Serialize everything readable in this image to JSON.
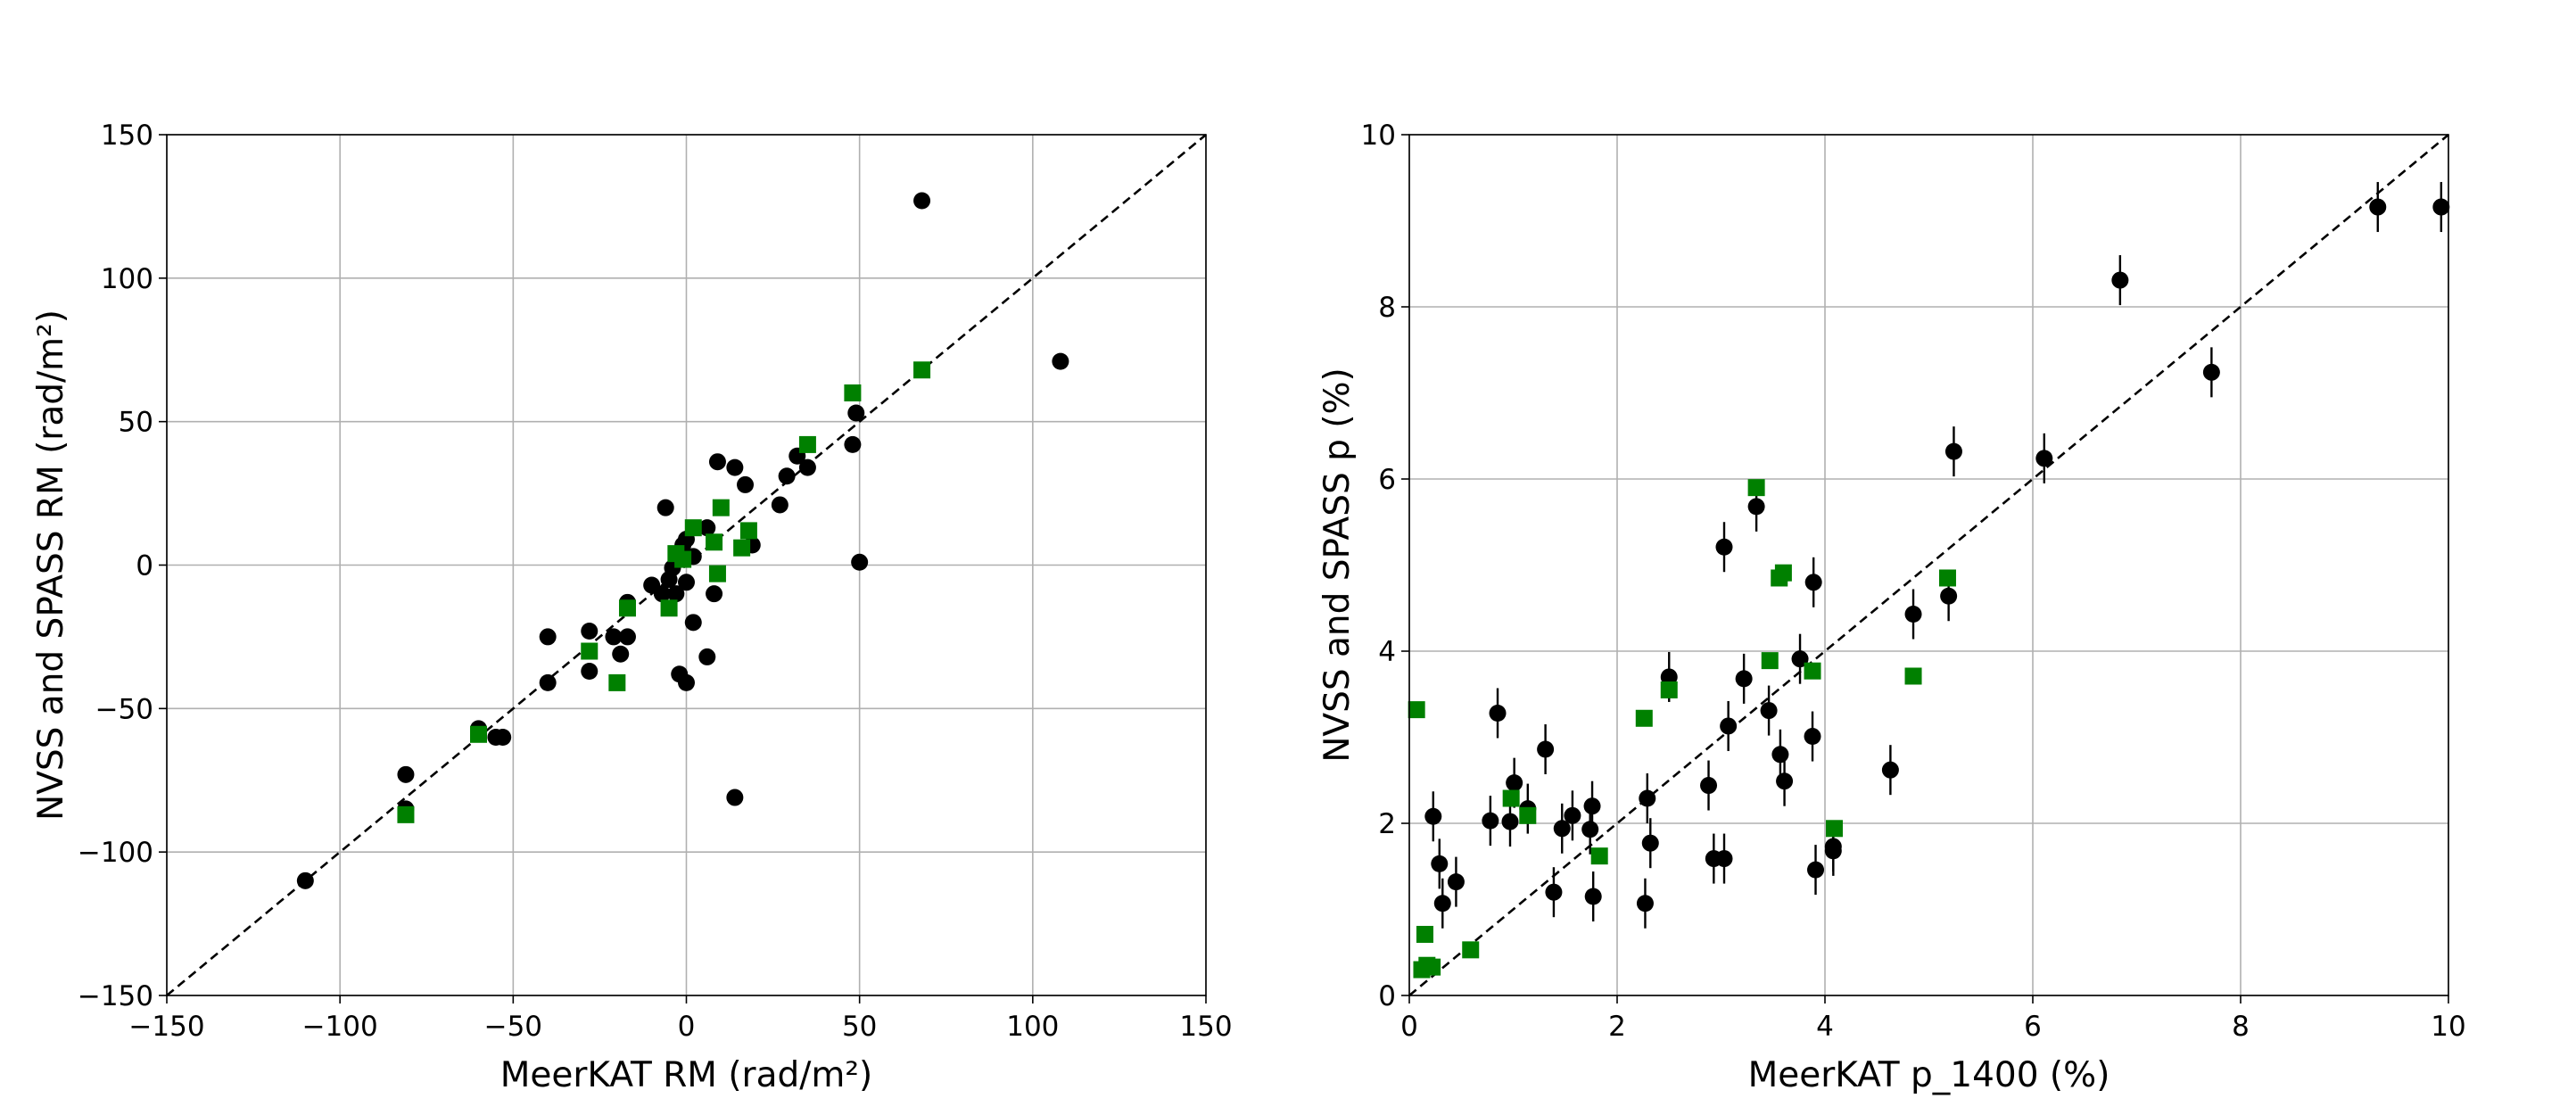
{
  "chart_data": [
    {
      "type": "scatter",
      "xlabel": "MeerKAT RM (rad/m²)",
      "ylabel": "NVSS and SPASS RM (rad/m²)",
      "xlim": [
        -150,
        150
      ],
      "ylim": [
        -150,
        150
      ],
      "xticks": [
        -150,
        -100,
        -50,
        0,
        50,
        100,
        150
      ],
      "yticks": [
        -150,
        -100,
        -50,
        0,
        50,
        100,
        150
      ],
      "xtick_labels": [
        "−150",
        "−100",
        "−50",
        "0",
        "50",
        "100",
        "150"
      ],
      "ytick_labels": [
        "−150",
        "−100",
        "−50",
        "0",
        "50",
        "100",
        "150"
      ],
      "grid": true,
      "reference_line": "y = x",
      "series": [
        {
          "marker": "circle",
          "color": "#000000",
          "points": [
            [
              -110,
              -110
            ],
            [
              -81,
              -73
            ],
            [
              -81,
              -85
            ],
            [
              -60,
              -57
            ],
            [
              -55,
              -60
            ],
            [
              -53,
              -60
            ],
            [
              -40,
              -25
            ],
            [
              -40,
              -41
            ],
            [
              -28,
              -23
            ],
            [
              -28,
              -37
            ],
            [
              -21,
              -25
            ],
            [
              -19,
              -31
            ],
            [
              -17,
              -25
            ],
            [
              -17,
              -13
            ],
            [
              -10,
              -7
            ],
            [
              -7,
              -10
            ],
            [
              -6,
              20
            ],
            [
              -5,
              -5
            ],
            [
              -4,
              -1
            ],
            [
              -3,
              -10
            ],
            [
              -2,
              -38
            ],
            [
              -1,
              7
            ],
            [
              0,
              -6
            ],
            [
              0,
              9
            ],
            [
              0,
              -41
            ],
            [
              2,
              -20
            ],
            [
              2,
              3
            ],
            [
              6,
              13
            ],
            [
              6,
              -32
            ],
            [
              8,
              -10
            ],
            [
              9,
              36
            ],
            [
              14,
              34
            ],
            [
              14,
              -81
            ],
            [
              17,
              28
            ],
            [
              19,
              7
            ],
            [
              27,
              21
            ],
            [
              29,
              31
            ],
            [
              32,
              38
            ],
            [
              35,
              34
            ],
            [
              48,
              42
            ],
            [
              49,
              53
            ],
            [
              50,
              1
            ],
            [
              68,
              127
            ],
            [
              108,
              71
            ]
          ]
        },
        {
          "marker": "square",
          "color": "#008000",
          "points": [
            [
              -81,
              -87
            ],
            [
              -60,
              -59
            ],
            [
              -28,
              -30
            ],
            [
              -20,
              -41
            ],
            [
              -17,
              -15
            ],
            [
              -5,
              -15
            ],
            [
              -3,
              4
            ],
            [
              -1,
              2
            ],
            [
              2,
              13
            ],
            [
              8,
              8
            ],
            [
              9,
              -3
            ],
            [
              10,
              20
            ],
            [
              16,
              6
            ],
            [
              18,
              12
            ],
            [
              35,
              42
            ],
            [
              48,
              60
            ],
            [
              68,
              68
            ]
          ]
        }
      ]
    },
    {
      "type": "scatter",
      "xlabel": "MeerKAT p_1400 (%)",
      "ylabel": "NVSS and SPASS p (%)",
      "xlim": [
        0,
        10
      ],
      "ylim": [
        0,
        10
      ],
      "xticks": [
        0,
        2,
        4,
        6,
        8,
        10
      ],
      "yticks": [
        0,
        2,
        4,
        6,
        8,
        10
      ],
      "xtick_labels": [
        "0",
        "2",
        "4",
        "6",
        "8",
        "10"
      ],
      "ytick_labels": [
        "0",
        "2",
        "4",
        "6",
        "8",
        "10"
      ],
      "grid": true,
      "reference_line": "y = x",
      "series": [
        {
          "marker": "circle",
          "color": "#000000",
          "error_bars": true,
          "points": [
            [
              0.23,
              2.08
            ],
            [
              0.29,
              1.53
            ],
            [
              0.32,
              1.07
            ],
            [
              0.45,
              1.32
            ],
            [
              0.78,
              2.03
            ],
            [
              0.85,
              3.28
            ],
            [
              0.97,
              2.02
            ],
            [
              1.01,
              2.47
            ],
            [
              1.14,
              2.17
            ],
            [
              1.31,
              2.86
            ],
            [
              1.39,
              1.2
            ],
            [
              1.47,
              1.94
            ],
            [
              1.57,
              2.09
            ],
            [
              1.74,
              1.93
            ],
            [
              1.76,
              2.2
            ],
            [
              1.77,
              1.15
            ],
            [
              2.27,
              1.07
            ],
            [
              2.29,
              2.29
            ],
            [
              2.32,
              1.77
            ],
            [
              2.5,
              3.7
            ],
            [
              2.88,
              2.44
            ],
            [
              2.93,
              1.59
            ],
            [
              3.03,
              1.59
            ],
            [
              3.03,
              5.21
            ],
            [
              3.07,
              3.13
            ],
            [
              3.22,
              3.68
            ],
            [
              3.34,
              5.68
            ],
            [
              3.46,
              3.31
            ],
            [
              3.57,
              2.8
            ],
            [
              3.61,
              2.49
            ],
            [
              3.76,
              3.91
            ],
            [
              3.88,
              3.01
            ],
            [
              3.89,
              4.8
            ],
            [
              3.91,
              1.46
            ],
            [
              4.08,
              1.68
            ],
            [
              4.08,
              1.73
            ],
            [
              4.63,
              2.62
            ],
            [
              4.85,
              4.43
            ],
            [
              5.19,
              4.64
            ],
            [
              5.24,
              6.32
            ],
            [
              6.11,
              6.24
            ],
            [
              6.84,
              8.31
            ],
            [
              7.72,
              7.24
            ],
            [
              9.32,
              9.16
            ],
            [
              9.93,
              9.16
            ]
          ]
        },
        {
          "marker": "square",
          "color": "#008000",
          "points": [
            [
              0.07,
              3.32
            ],
            [
              0.12,
              0.3
            ],
            [
              0.15,
              0.71
            ],
            [
              0.17,
              0.35
            ],
            [
              0.22,
              0.33
            ],
            [
              0.59,
              0.53
            ],
            [
              0.98,
              2.29
            ],
            [
              1.14,
              2.09
            ],
            [
              1.83,
              1.62
            ],
            [
              2.26,
              3.22
            ],
            [
              2.5,
              3.55
            ],
            [
              3.34,
              5.9
            ],
            [
              3.47,
              3.89
            ],
            [
              3.56,
              4.85
            ],
            [
              3.6,
              4.91
            ],
            [
              3.88,
              3.77
            ],
            [
              4.85,
              3.71
            ],
            [
              4.09,
              1.94
            ],
            [
              5.18,
              4.85
            ]
          ]
        }
      ]
    }
  ]
}
